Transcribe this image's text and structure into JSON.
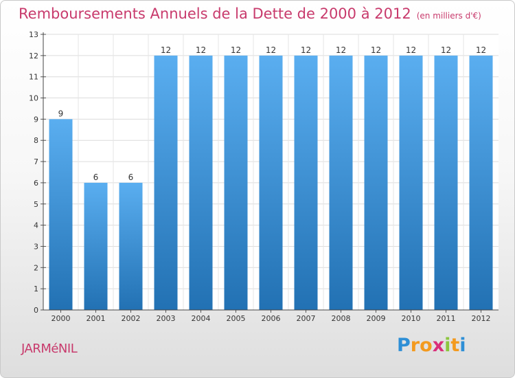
{
  "header": {
    "title": "Remboursements Annuels de la Dette de 2000 à 2012",
    "unit": "(en milliers d'€)"
  },
  "footer": {
    "commune": "JARMéNIL",
    "brand": "Proxiti"
  },
  "colors": {
    "title": "#c83a6c",
    "bar_top": "#5aaef0",
    "bar_bottom": "#2271b3"
  },
  "chart_data": {
    "type": "bar",
    "title": "Remboursements Annuels de la Dette de 2000 à 2012",
    "xlabel": "",
    "ylabel": "",
    "categories": [
      "2000",
      "2001",
      "2002",
      "2003",
      "2004",
      "2005",
      "2006",
      "2007",
      "2008",
      "2009",
      "2010",
      "2011",
      "2012"
    ],
    "values": [
      9,
      6,
      6,
      12,
      12,
      12,
      12,
      12,
      12,
      12,
      12,
      12,
      12
    ],
    "data_labels": [
      "9",
      "6",
      "6",
      "12",
      "12",
      "12",
      "12",
      "12",
      "12",
      "12",
      "12",
      "12",
      "12"
    ],
    "ylim": [
      0,
      13
    ],
    "yticks": [
      0,
      1,
      2,
      3,
      4,
      5,
      6,
      7,
      8,
      9,
      10,
      11,
      12,
      13
    ],
    "grid": true
  }
}
